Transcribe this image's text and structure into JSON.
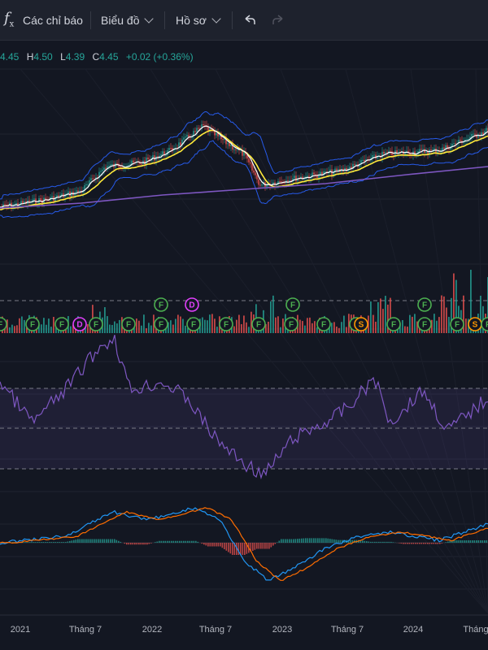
{
  "toolbar": {
    "indicators_label": "Các chỉ báo",
    "chart_label": "Biểu đồ",
    "profile_label": "Hồ sơ"
  },
  "ohlc": {
    "open_key": "",
    "open_val": "4.45",
    "high_key": "H",
    "high_val": "4.50",
    "low_key": "L",
    "low_val": "4.39",
    "close_key": "C",
    "close_val": "4.45",
    "change": "+0.02 (+0.36%)"
  },
  "time_axis": [
    "2021",
    "Tháng 7",
    "2022",
    "Tháng 7",
    "2023",
    "Tháng 7",
    "2024",
    "Tháng"
  ],
  "events": {
    "row1": [
      "F",
      "D",
      "F",
      "F"
    ],
    "row2": [
      "F",
      "F",
      "F",
      "D",
      "F",
      "F",
      "F",
      "F",
      "F",
      "F",
      "F",
      "F",
      "F",
      "S",
      "F",
      "F",
      "F",
      "S",
      "F"
    ]
  },
  "colors": {
    "up": "#26a69a",
    "down": "#ef5350",
    "bollinger": "#2962ff",
    "ma_fast": "#ffffff",
    "ma_slow": "#ffeb3b",
    "ma_long": "#7e57c2",
    "rsi": "#7e57c2",
    "macd": "#2196f3",
    "signal": "#ff6d00"
  }
}
